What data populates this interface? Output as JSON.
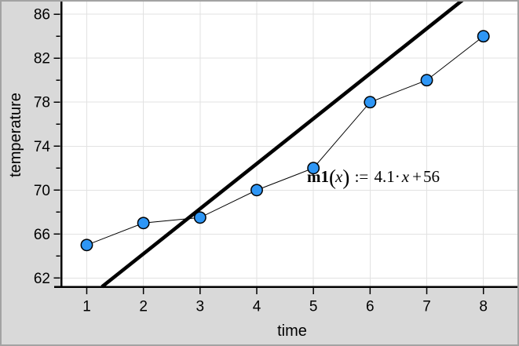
{
  "colors": {
    "window_bg": "#d9d9d9",
    "window_border": "#a3a3a3",
    "plot_bg": "#ffffff",
    "gridline": "#e2e2e2",
    "axis": "#000000",
    "fit_line": "#000000",
    "connect_line": "#000000",
    "marker_fill": "#2e96f5",
    "marker_stroke": "#000000",
    "text": "#000000"
  },
  "axes": {
    "x_title": "time",
    "y_title": "temperature",
    "x_tick_labels": [
      "1",
      "2",
      "3",
      "4",
      "5",
      "6",
      "7",
      "8"
    ],
    "y_tick_labels": [
      "62",
      "66",
      "70",
      "74",
      "78",
      "82",
      "86"
    ],
    "y_minor_ticks": [
      64,
      68,
      72,
      76,
      80,
      84
    ]
  },
  "equation": {
    "full": "m1(x) := 4.1· x + 56",
    "name": "m1",
    "open_paren": "(",
    "variable": "x",
    "close_paren": ")",
    "assign": ":=",
    "coefficient": "4.1",
    "dot": "·",
    "variable2": "x",
    "plus": "+",
    "intercept": "56"
  },
  "chart_data": {
    "type": "scatter",
    "title": "",
    "xlabel": "time",
    "ylabel": "temperature",
    "x": [
      1,
      2,
      3,
      4,
      5,
      6,
      7,
      8
    ],
    "y": [
      65,
      67,
      67.5,
      70,
      72,
      78,
      80,
      84
    ],
    "points_connected": true,
    "fit_line": {
      "label": "m1(x) := 4.1· x + 56",
      "slope": 4.1,
      "intercept": 56
    },
    "xlim": [
      0.55,
      8.6
    ],
    "ylim": [
      61.2,
      87.3
    ],
    "x_tick_step": 1,
    "y_tick_major_step": 4,
    "y_tick_minor_step": 2,
    "grid": "on",
    "legend": "none"
  }
}
